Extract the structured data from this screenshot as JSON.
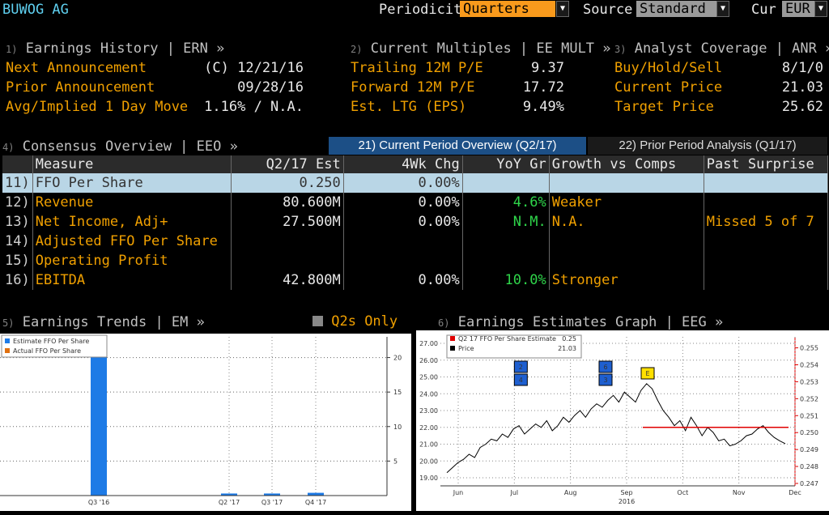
{
  "header": {
    "ticker": "BUWOG AG",
    "periodicity_label": "Periodicity",
    "periodicity_value": "Quarters",
    "source_label": "Source",
    "source_value": "Standard",
    "cur_label": "Cur",
    "cur_value": "EUR"
  },
  "earnings_history": {
    "num": "1)",
    "title": "Earnings History | ERN »",
    "rows": [
      {
        "label": "Next Announcement",
        "value": "(C)  12/21/16"
      },
      {
        "label": "Prior Announcement",
        "value": "09/28/16"
      },
      {
        "label": "Avg/Implied 1 Day Move",
        "value": "1.16% / N.A."
      }
    ]
  },
  "current_multiples": {
    "num": "2)",
    "title": "Current Multiples | EE MULT »",
    "rows": [
      {
        "label": "Trailing 12M P/E",
        "value": "9.37"
      },
      {
        "label": "Forward 12M P/E",
        "value": "17.72"
      },
      {
        "label": "Est. LTG (EPS)",
        "value": "9.49%"
      }
    ]
  },
  "analyst_coverage": {
    "num": "3)",
    "title": "Analyst Coverage | ANR »",
    "rows": [
      {
        "label": "Buy/Hold/Sell",
        "value": "8/1/0"
      },
      {
        "label": "Current Price",
        "value": "21.03"
      },
      {
        "label": "Target Price",
        "value": "25.62"
      }
    ]
  },
  "consensus": {
    "num": "4)",
    "title": "Consensus Overview | EEO »",
    "tab_current": "21) Current Period Overview (Q2/17)",
    "tab_prior": "22) Prior Period Analysis (Q1/17)",
    "columns": [
      "Measure",
      "Q2/17 Est",
      "4Wk Chg",
      "YoY Gr",
      "Growth vs Comps",
      "Past Surprise"
    ],
    "rows": [
      {
        "idx": "11)",
        "measure": "FFO Per Share",
        "est": "0.250",
        "chg": "0.00%",
        "yoy": "",
        "comps": "",
        "surprise": ""
      },
      {
        "idx": "12)",
        "measure": "Revenue",
        "est": "80.600M",
        "chg": "0.00%",
        "yoy": "4.6%",
        "comps": "Weaker",
        "surprise": ""
      },
      {
        "idx": "13)",
        "measure": "Net Income, Adj+",
        "est": "27.500M",
        "chg": "0.00%",
        "yoy": "N.M.",
        "comps": "N.A.",
        "surprise": "Missed 5 of 7"
      },
      {
        "idx": "14)",
        "measure": "Adjusted FFO Per Share",
        "est": "",
        "chg": "",
        "yoy": "",
        "comps": "",
        "surprise": ""
      },
      {
        "idx": "15)",
        "measure": "Operating Profit",
        "est": "",
        "chg": "",
        "yoy": "",
        "comps": "",
        "surprise": ""
      },
      {
        "idx": "16)",
        "measure": "EBITDA",
        "est": "42.800M",
        "chg": "0.00%",
        "yoy": "10.0%",
        "comps": "Stronger",
        "surprise": ""
      }
    ]
  },
  "earnings_trends": {
    "num": "5)",
    "title": "Earnings Trends | EM »",
    "toggle": "Q2s Only"
  },
  "earnings_graph": {
    "num": "6)",
    "title": "Earnings Estimates Graph | EEG »"
  },
  "chart_data": [
    {
      "type": "bar",
      "legend": [
        "Estimate FFO Per Share",
        "Actual FFO Per Share"
      ],
      "categories": [
        "Q3 '16",
        "Q2 '17",
        "Q3 '17",
        "Q4 '17"
      ],
      "series": [
        {
          "name": "Estimate FFO Per Share",
          "values": [
            24,
            0.3,
            0.3,
            0.4
          ]
        }
      ],
      "yticks": [
        5,
        10,
        15,
        20
      ],
      "ylim": [
        0,
        23
      ],
      "colors": {
        "estimate": "#1e7be6",
        "actual": "#e07010"
      }
    },
    {
      "type": "line",
      "legend": [
        {
          "label": "Q2 17 FFO Per Share Estimate",
          "value": "0.25",
          "color": "#e00000"
        },
        {
          "label": "Price",
          "value": "21.03",
          "color": "#000000"
        }
      ],
      "left_ticks": [
        "19.00",
        "20.00",
        "21.00",
        "22.00",
        "23.00",
        "24.00",
        "25.00",
        "26.00",
        "27.00"
      ],
      "right_ticks": [
        "0.247",
        "0.248",
        "0.249",
        "0.250",
        "0.251",
        "0.252",
        "0.253",
        "0.254",
        "0.255"
      ],
      "x_ticks": [
        "Jun",
        "Jul",
        "Aug",
        "Sep",
        "Oct",
        "Nov",
        "Dec"
      ],
      "x_year": "2016",
      "ylim": [
        18.5,
        27.5
      ],
      "price": [
        19.3,
        19.6,
        19.9,
        20.1,
        20.4,
        20.2,
        20.8,
        21.0,
        21.3,
        21.2,
        21.6,
        21.4,
        21.9,
        22.1,
        21.6,
        21.9,
        22.2,
        22.0,
        22.4,
        21.8,
        22.1,
        22.6,
        22.3,
        22.7,
        23.0,
        22.6,
        23.1,
        23.4,
        23.2,
        23.6,
        23.9,
        23.5,
        24.1,
        23.8,
        23.5,
        24.2,
        24.6,
        24.3,
        23.6,
        23.0,
        22.6,
        22.1,
        22.4,
        21.8,
        22.6,
        22.1,
        21.5,
        22.0,
        21.7,
        21.2,
        21.3,
        20.9,
        21.0,
        21.2,
        21.5,
        21.6,
        21.9,
        22.1,
        21.7,
        21.4,
        21.2,
        21.03
      ],
      "estimate_line": {
        "value": 0.25,
        "start_month": "Sep"
      },
      "event_markers": [
        {
          "month": "Jul",
          "labels": [
            "2",
            "4"
          ]
        },
        {
          "month": "Sep",
          "labels": [
            "6",
            "3"
          ]
        },
        {
          "month": "Sep",
          "labels": [
            "E"
          ]
        }
      ]
    }
  ]
}
